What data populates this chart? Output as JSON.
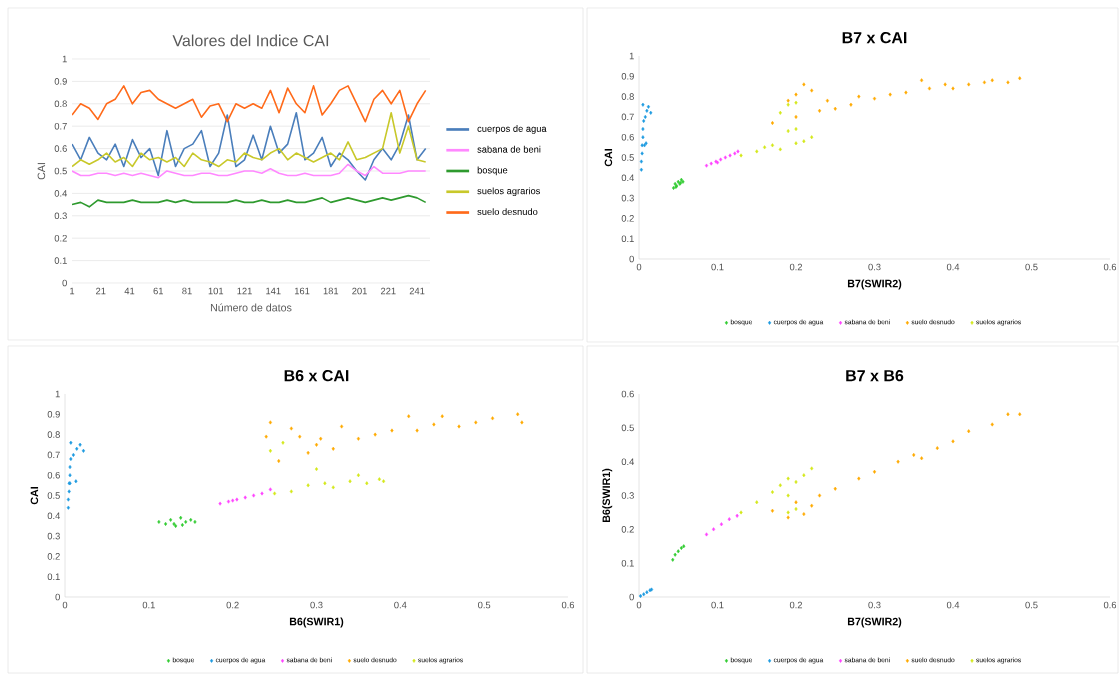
{
  "chart_data": [
    {
      "type": "line",
      "title": "Valores del Indice CAI",
      "xlabel": "Número de datos",
      "ylabel": "CAI",
      "xlim": [
        1,
        250
      ],
      "ylim": [
        0,
        1
      ],
      "xticks": [
        1,
        21,
        41,
        61,
        81,
        101,
        121,
        141,
        161,
        181,
        201,
        221,
        241
      ],
      "yticks": [
        0,
        0.1,
        0.2,
        0.3,
        0.4,
        0.5,
        0.6,
        0.7,
        0.8,
        0.9,
        1
      ],
      "grid": "y",
      "legend": "right",
      "x": [
        1,
        7,
        13,
        19,
        25,
        31,
        37,
        43,
        49,
        55,
        61,
        67,
        73,
        79,
        85,
        91,
        97,
        103,
        109,
        115,
        121,
        127,
        133,
        139,
        145,
        151,
        157,
        163,
        169,
        175,
        181,
        187,
        193,
        199,
        205,
        211,
        217,
        223,
        229,
        235,
        241,
        247
      ],
      "series": [
        {
          "name": "cuerpos de agua",
          "color": "#4a7ebb",
          "values": [
            0.62,
            0.55,
            0.65,
            0.58,
            0.55,
            0.62,
            0.52,
            0.64,
            0.56,
            0.6,
            0.48,
            0.68,
            0.52,
            0.6,
            0.62,
            0.68,
            0.52,
            0.58,
            0.75,
            0.52,
            0.55,
            0.66,
            0.55,
            0.7,
            0.58,
            0.62,
            0.76,
            0.55,
            0.58,
            0.65,
            0.52,
            0.58,
            0.55,
            0.5,
            0.46,
            0.55,
            0.6,
            0.55,
            0.62,
            0.75,
            0.55,
            0.6
          ]
        },
        {
          "name": "sabana de beni",
          "color": "#ff88ff",
          "values": [
            0.5,
            0.48,
            0.48,
            0.49,
            0.49,
            0.48,
            0.49,
            0.48,
            0.49,
            0.48,
            0.47,
            0.5,
            0.49,
            0.48,
            0.48,
            0.49,
            0.49,
            0.48,
            0.48,
            0.49,
            0.5,
            0.5,
            0.49,
            0.51,
            0.49,
            0.48,
            0.48,
            0.49,
            0.48,
            0.48,
            0.48,
            0.49,
            0.53,
            0.5,
            0.48,
            0.52,
            0.49,
            0.49,
            0.49,
            0.5,
            0.5,
            0.5
          ]
        },
        {
          "name": "bosque",
          "color": "#2e9a2e",
          "values": [
            0.35,
            0.36,
            0.34,
            0.37,
            0.36,
            0.36,
            0.36,
            0.37,
            0.36,
            0.36,
            0.36,
            0.37,
            0.36,
            0.37,
            0.36,
            0.36,
            0.36,
            0.36,
            0.36,
            0.37,
            0.36,
            0.36,
            0.37,
            0.36,
            0.36,
            0.37,
            0.36,
            0.36,
            0.37,
            0.38,
            0.36,
            0.37,
            0.38,
            0.37,
            0.36,
            0.37,
            0.38,
            0.37,
            0.38,
            0.39,
            0.38,
            0.36
          ]
        },
        {
          "name": "suelos agrarios",
          "color": "#c8c82a",
          "values": [
            0.52,
            0.55,
            0.53,
            0.55,
            0.58,
            0.54,
            0.56,
            0.52,
            0.58,
            0.55,
            0.56,
            0.54,
            0.56,
            0.52,
            0.58,
            0.55,
            0.54,
            0.52,
            0.55,
            0.54,
            0.58,
            0.56,
            0.55,
            0.58,
            0.6,
            0.55,
            0.58,
            0.56,
            0.54,
            0.56,
            0.58,
            0.55,
            0.63,
            0.55,
            0.56,
            0.58,
            0.6,
            0.76,
            0.58,
            0.7,
            0.55,
            0.54
          ]
        },
        {
          "name": "suelo desnudo",
          "color": "#ff6a1a",
          "values": [
            0.75,
            0.8,
            0.78,
            0.73,
            0.8,
            0.82,
            0.88,
            0.8,
            0.85,
            0.86,
            0.82,
            0.8,
            0.78,
            0.8,
            0.82,
            0.74,
            0.79,
            0.8,
            0.72,
            0.8,
            0.78,
            0.8,
            0.78,
            0.86,
            0.76,
            0.87,
            0.8,
            0.76,
            0.88,
            0.75,
            0.8,
            0.86,
            0.88,
            0.8,
            0.72,
            0.82,
            0.86,
            0.8,
            0.86,
            0.72,
            0.8,
            0.86
          ]
        }
      ]
    },
    {
      "type": "scatter",
      "title": "B7 x CAI",
      "xlabel": "B7(SWIR2)",
      "ylabel": "CAI",
      "xlim": [
        0,
        0.6
      ],
      "ylim": [
        0,
        1
      ],
      "xticks": [
        0,
        0.1,
        0.2,
        0.3,
        0.4,
        0.5,
        0.6
      ],
      "yticks": [
        0,
        0.1,
        0.2,
        0.3,
        0.4,
        0.5,
        0.6,
        0.7,
        0.8,
        0.9,
        1
      ],
      "legend": "bottom",
      "marker": "diamond",
      "series": [
        {
          "name": "bosque",
          "color": "#33cc33",
          "x": [
            0.044,
            0.046,
            0.048,
            0.05,
            0.052,
            0.054,
            0.056,
            0.047,
            0.053
          ],
          "values": [
            0.35,
            0.37,
            0.36,
            0.38,
            0.37,
            0.39,
            0.38,
            0.355,
            0.375
          ]
        },
        {
          "name": "cuerpos de agua",
          "color": "#1e9be0",
          "x": [
            0.003,
            0.003,
            0.004,
            0.004,
            0.005,
            0.005,
            0.006,
            0.008,
            0.007,
            0.005,
            0.01,
            0.012,
            0.015,
            0.009
          ],
          "values": [
            0.44,
            0.48,
            0.52,
            0.56,
            0.6,
            0.64,
            0.68,
            0.7,
            0.56,
            0.76,
            0.73,
            0.75,
            0.72,
            0.57
          ]
        },
        {
          "name": "sabana de beni",
          "color": "#ff44ff",
          "x": [
            0.086,
            0.092,
            0.098,
            0.104,
            0.11,
            0.116,
            0.122,
            0.126,
            0.1
          ],
          "values": [
            0.46,
            0.47,
            0.48,
            0.49,
            0.5,
            0.51,
            0.52,
            0.53,
            0.475
          ]
        },
        {
          "name": "suelo desnudo",
          "color": "#ffaa00",
          "x": [
            0.17,
            0.19,
            0.2,
            0.21,
            0.2,
            0.22,
            0.23,
            0.24,
            0.25,
            0.27,
            0.28,
            0.3,
            0.32,
            0.34,
            0.36,
            0.37,
            0.39,
            0.4,
            0.42,
            0.44,
            0.45,
            0.47,
            0.485
          ],
          "values": [
            0.67,
            0.78,
            0.81,
            0.86,
            0.7,
            0.83,
            0.73,
            0.78,
            0.74,
            0.76,
            0.8,
            0.79,
            0.81,
            0.82,
            0.88,
            0.84,
            0.86,
            0.84,
            0.86,
            0.87,
            0.88,
            0.87,
            0.89
          ]
        },
        {
          "name": "suelos agrarios",
          "color": "#d4e81a",
          "x": [
            0.13,
            0.15,
            0.16,
            0.17,
            0.18,
            0.19,
            0.19,
            0.2,
            0.2,
            0.21,
            0.22,
            0.18,
            0.2
          ],
          "values": [
            0.51,
            0.53,
            0.55,
            0.56,
            0.72,
            0.63,
            0.76,
            0.64,
            0.57,
            0.58,
            0.6,
            0.54,
            0.77
          ]
        }
      ]
    },
    {
      "type": "scatter",
      "title": "B6 x CAI",
      "xlabel": "B6(SWIR1)",
      "ylabel": "CAI",
      "xlim": [
        0,
        0.6
      ],
      "ylim": [
        0,
        1
      ],
      "xticks": [
        0,
        0.1,
        0.2,
        0.3,
        0.4,
        0.5,
        0.6
      ],
      "yticks": [
        0,
        0.1,
        0.2,
        0.3,
        0.4,
        0.5,
        0.6,
        0.7,
        0.8,
        0.9,
        1
      ],
      "legend": "bottom",
      "marker": "diamond",
      "series": [
        {
          "name": "bosque",
          "color": "#33cc33",
          "x": [
            0.112,
            0.12,
            0.126,
            0.132,
            0.138,
            0.144,
            0.15,
            0.155,
            0.13,
            0.14
          ],
          "values": [
            0.37,
            0.36,
            0.38,
            0.35,
            0.39,
            0.37,
            0.38,
            0.37,
            0.36,
            0.355
          ]
        },
        {
          "name": "cuerpos de agua",
          "color": "#1e9be0",
          "x": [
            0.004,
            0.004,
            0.005,
            0.005,
            0.006,
            0.006,
            0.007,
            0.01,
            0.006,
            0.007,
            0.014,
            0.018,
            0.022,
            0.013
          ],
          "values": [
            0.44,
            0.48,
            0.52,
            0.56,
            0.6,
            0.64,
            0.68,
            0.7,
            0.56,
            0.76,
            0.73,
            0.75,
            0.72,
            0.57
          ]
        },
        {
          "name": "sabana de beni",
          "color": "#ff44ff",
          "x": [
            0.185,
            0.195,
            0.205,
            0.215,
            0.225,
            0.235,
            0.245,
            0.2
          ],
          "values": [
            0.46,
            0.47,
            0.48,
            0.49,
            0.5,
            0.51,
            0.53,
            0.475
          ]
        },
        {
          "name": "suelo desnudo",
          "color": "#ffaa00",
          "x": [
            0.24,
            0.245,
            0.255,
            0.27,
            0.28,
            0.29,
            0.3,
            0.305,
            0.32,
            0.33,
            0.35,
            0.37,
            0.39,
            0.41,
            0.42,
            0.44,
            0.45,
            0.47,
            0.49,
            0.51,
            0.54,
            0.545
          ],
          "values": [
            0.79,
            0.86,
            0.67,
            0.83,
            0.79,
            0.71,
            0.75,
            0.78,
            0.73,
            0.84,
            0.78,
            0.8,
            0.82,
            0.89,
            0.82,
            0.85,
            0.89,
            0.84,
            0.86,
            0.88,
            0.9,
            0.86
          ]
        },
        {
          "name": "suelos agrarios",
          "color": "#d4e81a",
          "x": [
            0.245,
            0.26,
            0.27,
            0.29,
            0.3,
            0.31,
            0.32,
            0.34,
            0.35,
            0.36,
            0.375,
            0.38,
            0.25
          ],
          "values": [
            0.72,
            0.76,
            0.52,
            0.55,
            0.63,
            0.56,
            0.54,
            0.57,
            0.6,
            0.56,
            0.58,
            0.57,
            0.51
          ]
        }
      ]
    },
    {
      "type": "scatter",
      "title": "B7 x B6",
      "xlabel": "B7(SWIR2)",
      "ylabel": "B6(SWIR1)",
      "xlim": [
        0,
        0.6
      ],
      "ylim": [
        0,
        0.6
      ],
      "xticks": [
        0,
        0.1,
        0.2,
        0.3,
        0.4,
        0.5,
        0.6
      ],
      "yticks": [
        0,
        0.1,
        0.2,
        0.3,
        0.4,
        0.5,
        0.6
      ],
      "legend": "bottom",
      "marker": "diamond",
      "series": [
        {
          "name": "bosque",
          "color": "#33cc33",
          "x": [
            0.043,
            0.046,
            0.05,
            0.054,
            0.057
          ],
          "values": [
            0.11,
            0.125,
            0.135,
            0.145,
            0.15
          ]
        },
        {
          "name": "cuerpos de agua",
          "color": "#1e9be0",
          "x": [
            0.002,
            0.006,
            0.01,
            0.014,
            0.016
          ],
          "values": [
            0.003,
            0.008,
            0.014,
            0.02,
            0.022
          ]
        },
        {
          "name": "sabana de beni",
          "color": "#ff44ff",
          "x": [
            0.086,
            0.095,
            0.105,
            0.115,
            0.125
          ],
          "values": [
            0.185,
            0.2,
            0.215,
            0.23,
            0.24
          ]
        },
        {
          "name": "suelo desnudo",
          "color": "#ffaa00",
          "x": [
            0.17,
            0.19,
            0.2,
            0.21,
            0.22,
            0.23,
            0.25,
            0.28,
            0.3,
            0.33,
            0.35,
            0.36,
            0.38,
            0.4,
            0.42,
            0.45,
            0.47,
            0.485
          ],
          "values": [
            0.255,
            0.235,
            0.28,
            0.245,
            0.27,
            0.3,
            0.32,
            0.35,
            0.37,
            0.4,
            0.42,
            0.41,
            0.44,
            0.46,
            0.49,
            0.51,
            0.54,
            0.54
          ]
        },
        {
          "name": "suelos agrarios",
          "color": "#d4e81a",
          "x": [
            0.13,
            0.15,
            0.17,
            0.18,
            0.19,
            0.2,
            0.21,
            0.22,
            0.19,
            0.2,
            0.19
          ],
          "values": [
            0.25,
            0.28,
            0.31,
            0.33,
            0.35,
            0.34,
            0.36,
            0.38,
            0.25,
            0.26,
            0.3
          ]
        }
      ]
    }
  ]
}
